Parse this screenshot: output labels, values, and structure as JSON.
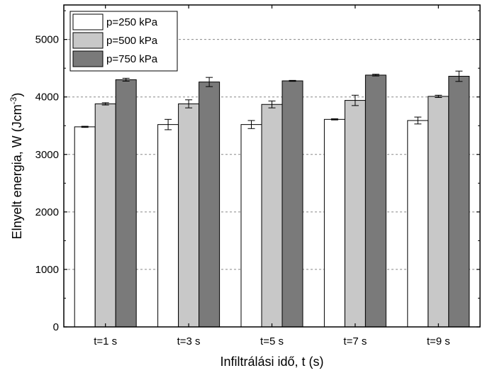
{
  "chart_data": {
    "type": "bar",
    "xlabel": "Infiltrálási idő, t (s)",
    "ylabel": "Elnyelt energia, W (Jcm",
    "ylabel_sup": "-3",
    "ylabel_close": ")",
    "ylim": [
      0,
      5600
    ],
    "yticks": [
      0,
      1000,
      2000,
      3000,
      4000,
      5000
    ],
    "grid": "horizontal dashed",
    "legend_position": "top-left",
    "categories": [
      "t=1 s",
      "t=3 s",
      "t=5 s",
      "t=7 s",
      "t=9 s"
    ],
    "series": [
      {
        "name": "p=250 kPa",
        "color": "#ffffff",
        "values": [
          3480,
          3520,
          3520,
          3610,
          3590
        ],
        "errors": [
          10,
          90,
          70,
          10,
          60
        ]
      },
      {
        "name": "p=500 kPa",
        "color": "#c8c8c8",
        "values": [
          3880,
          3880,
          3870,
          3940,
          4010
        ],
        "errors": [
          20,
          70,
          60,
          90,
          20
        ]
      },
      {
        "name": "p=750 kPa",
        "color": "#7a7a7a",
        "values": [
          4300,
          4260,
          4280,
          4380,
          4360
        ],
        "errors": [
          25,
          80,
          8,
          15,
          90
        ]
      }
    ]
  }
}
